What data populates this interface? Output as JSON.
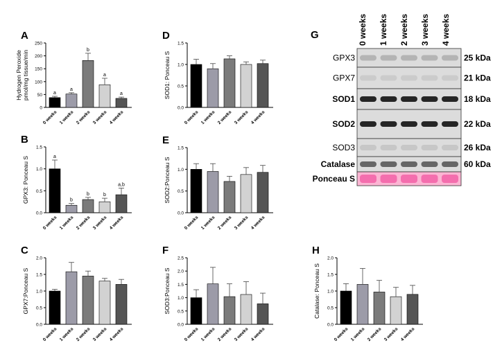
{
  "chart_data": [
    {
      "type": "bar",
      "panel": "A",
      "ylabel": [
        "Hydrogen Peroxide",
        "pmol/mg tissue/min"
      ],
      "categories": [
        "0 weeks",
        "1 weeks",
        "2 weeks",
        "3 weeks",
        "4 weeks"
      ],
      "values": [
        38,
        52,
        182,
        88,
        35
      ],
      "errors": [
        5,
        5,
        28,
        25,
        5
      ],
      "annotations": [
        "a",
        "a",
        "b",
        "a",
        "a"
      ],
      "colors": [
        "#000000",
        "#9c9ba8",
        "#7b7b7b",
        "#d2d2d2",
        "#555555"
      ],
      "ylim": [
        0,
        250
      ],
      "yticks": [
        0,
        50,
        100,
        150,
        200,
        250
      ]
    },
    {
      "type": "bar",
      "panel": "B",
      "ylabel": "GPX3: Ponceau S",
      "categories": [
        "0 weeks",
        "1 weeks",
        "2 weeks",
        "3 weeks",
        "4 weeks"
      ],
      "values": [
        1.0,
        0.17,
        0.3,
        0.25,
        0.41
      ],
      "errors": [
        0.2,
        0.04,
        0.05,
        0.08,
        0.15
      ],
      "annotations": [
        "a",
        "b",
        "b",
        "b",
        "a,b"
      ],
      "colors": [
        "#000000",
        "#9c9ba8",
        "#7b7b7b",
        "#d2d2d2",
        "#555555"
      ],
      "ylim": [
        0,
        1.5
      ],
      "yticks": [
        {
          "value": 0,
          "label": "0.0"
        },
        0.5,
        {
          "value": 1,
          "label": "1.0"
        },
        1.5
      ]
    },
    {
      "type": "bar",
      "panel": "C",
      "ylabel": "GPX7:Ponceau S",
      "categories": [
        "0 weeks",
        "1 weeks",
        "2 weeks",
        "3 weeks",
        "4 weeks"
      ],
      "values": [
        1.0,
        1.58,
        1.45,
        1.3,
        1.2
      ],
      "errors": [
        0.05,
        0.28,
        0.15,
        0.08,
        0.15
      ],
      "colors": [
        "#000000",
        "#9c9ba8",
        "#7b7b7b",
        "#d2d2d2",
        "#555555"
      ],
      "ylim": [
        0,
        2
      ],
      "yticks": [
        {
          "value": 0,
          "label": "0.0"
        },
        0.5,
        {
          "value": 1,
          "label": "1.0"
        },
        1.5,
        {
          "value": 2,
          "label": "2.0"
        }
      ]
    },
    {
      "type": "bar",
      "panel": "D",
      "ylabel": "SOD1: Ponceau S",
      "categories": [
        "0 weeks",
        "1 weeks",
        "2 weeks",
        "3 weeks",
        "4 weeks"
      ],
      "values": [
        1.0,
        0.9,
        1.13,
        1.0,
        1.02
      ],
      "errors": [
        0.12,
        0.12,
        0.07,
        0.06,
        0.08
      ],
      "colors": [
        "#000000",
        "#9c9ba8",
        "#7b7b7b",
        "#d2d2d2",
        "#555555"
      ],
      "ylim": [
        0,
        1.5
      ],
      "yticks": [
        {
          "value": 0,
          "label": "0.0"
        },
        0.5,
        {
          "value": 1,
          "label": "1.0"
        },
        1.5
      ]
    },
    {
      "type": "bar",
      "panel": "E",
      "ylabel": "SOD2:Ponceau S",
      "categories": [
        "0 weeks",
        "1 weeks",
        "2 weeks",
        "3 weeks",
        "4 weeks"
      ],
      "values": [
        1.0,
        0.95,
        0.72,
        0.88,
        0.93
      ],
      "errors": [
        0.13,
        0.18,
        0.12,
        0.16,
        0.16
      ],
      "colors": [
        "#000000",
        "#9c9ba8",
        "#7b7b7b",
        "#d2d2d2",
        "#555555"
      ],
      "ylim": [
        0,
        1.5
      ],
      "yticks": [
        {
          "value": 0,
          "label": "0.0"
        },
        0.5,
        {
          "value": 1,
          "label": "1.0"
        },
        1.5
      ]
    },
    {
      "type": "bar",
      "panel": "F",
      "ylabel": "SOD3:Ponceau S",
      "categories": [
        "0 weeks",
        "1 weeks",
        "2 weeks",
        "3 weeks",
        "4 weeks"
      ],
      "values": [
        1.0,
        1.52,
        1.04,
        1.12,
        0.77
      ],
      "errors": [
        0.3,
        0.62,
        0.48,
        0.48,
        0.4
      ],
      "colors": [
        "#000000",
        "#9c9ba8",
        "#7b7b7b",
        "#d2d2d2",
        "#555555"
      ],
      "ylim": [
        0,
        2.5
      ],
      "yticks": [
        {
          "value": 0,
          "label": "0.0"
        },
        0.5,
        {
          "value": 1,
          "label": "1.0"
        },
        1.5,
        {
          "value": 2,
          "label": "2.0"
        },
        2.5
      ]
    },
    {
      "type": "bar",
      "panel": "H",
      "ylabel": "Catalase: Ponceau S",
      "categories": [
        "0 weeks",
        "1 weeks",
        "2 weeks",
        "3 weeks",
        "4 weeks"
      ],
      "values": [
        1.0,
        1.2,
        0.97,
        0.83,
        0.9
      ],
      "errors": [
        0.22,
        0.48,
        0.35,
        0.28,
        0.27
      ],
      "colors": [
        "#000000",
        "#9c9ba8",
        "#7b7b7b",
        "#d2d2d2",
        "#555555"
      ],
      "ylim": [
        0,
        2
      ],
      "yticks": [
        {
          "value": 0,
          "label": "0.0"
        },
        0.5,
        {
          "value": 1,
          "label": "1.0"
        },
        1.5,
        {
          "value": 2,
          "label": "2.0"
        }
      ]
    }
  ],
  "blot": {
    "panel": "G",
    "lanes": [
      "0 weeks",
      "1 weeks",
      "2 weeks",
      "3 weeks",
      "4 weeks"
    ],
    "rows": [
      {
        "name": "GPX3",
        "size": "25 kDa"
      },
      {
        "name": "GPX7",
        "size": "21 kDa"
      },
      {
        "name": "SOD1",
        "size": "18 kDa"
      },
      {
        "name": "SOD2",
        "size": "22 kDa"
      },
      {
        "name": "SOD3",
        "size": "26 kDa"
      },
      {
        "name": "Catalase",
        "size": "60 kDa"
      },
      {
        "name": "Ponceau S",
        "size": null
      }
    ]
  }
}
